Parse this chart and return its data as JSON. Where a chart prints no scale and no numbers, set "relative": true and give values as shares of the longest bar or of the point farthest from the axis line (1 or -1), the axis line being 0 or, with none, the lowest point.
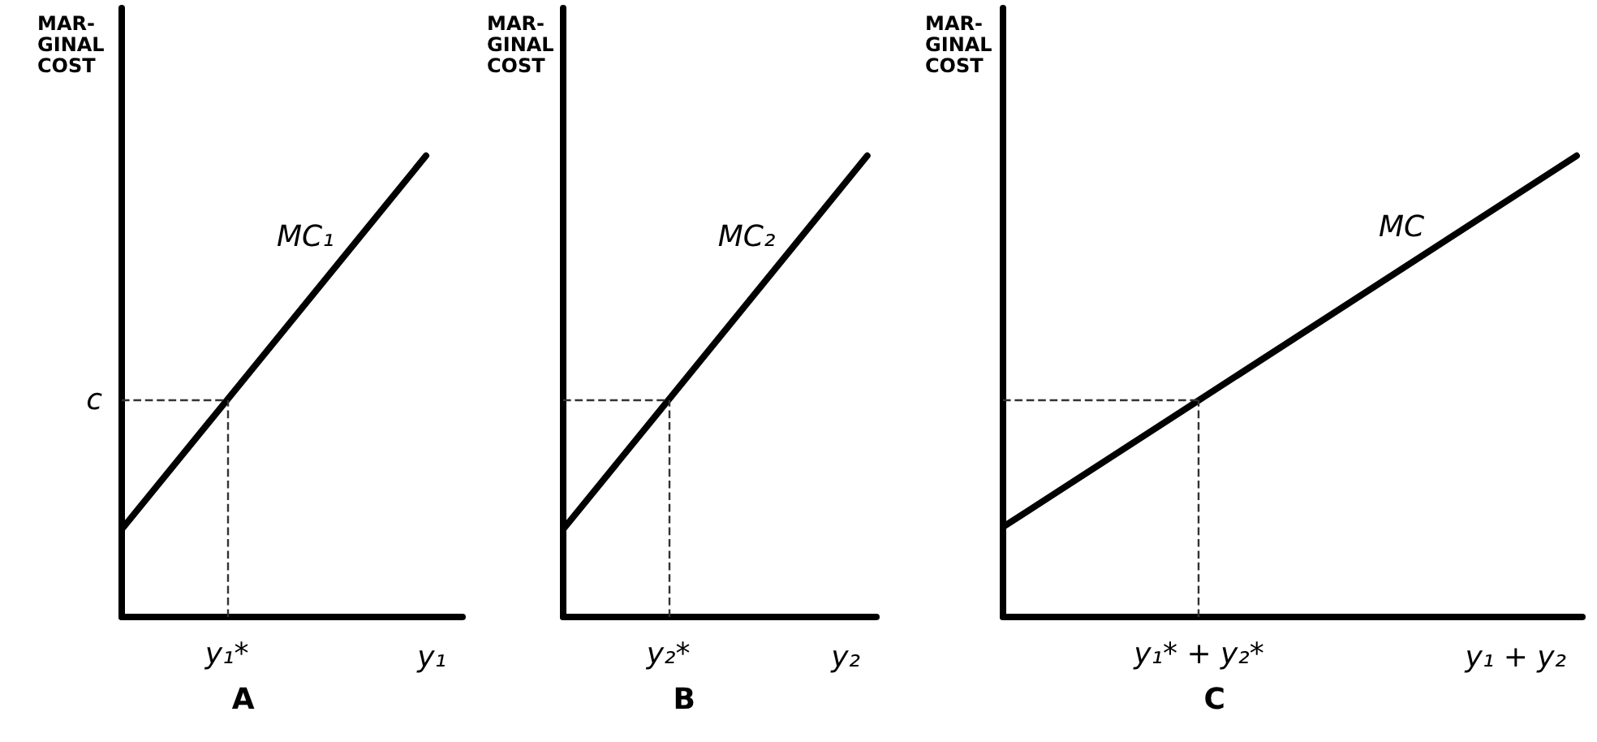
{
  "chart_data": [
    {
      "type": "line",
      "title": "A",
      "ylabel": "MAR-GINAL COST",
      "xlabel": "y₁",
      "relative": true,
      "categories": [
        null,
        null
      ],
      "grid": false,
      "legend": false,
      "marker": "none",
      "line_style": "solid",
      "series": [
        {
          "name": "MC₁",
          "color": "#000000",
          "values": [
            0.19,
            1
          ]
        }
      ],
      "ref_lines": [
        {
          "axis": "y",
          "value": 0.47,
          "label": "c",
          "line_style": "dashed",
          "color": "#333333"
        },
        {
          "axis": "x",
          "label": "y₁*",
          "line_style": "dashed",
          "color": "#333333"
        }
      ]
    },
    {
      "type": "line",
      "title": "B",
      "ylabel": "MAR-GINAL COST",
      "xlabel": "y₂",
      "relative": true,
      "categories": [
        null,
        null
      ],
      "grid": false,
      "legend": false,
      "marker": "none",
      "line_style": "solid",
      "series": [
        {
          "name": "MC₂",
          "color": "#000000",
          "values": [
            0.19,
            1
          ]
        }
      ],
      "ref_lines": [
        {
          "axis": "y",
          "value": 0.47,
          "line_style": "dashed",
          "color": "#333333"
        },
        {
          "axis": "x",
          "label": "y₂*",
          "line_style": "dashed",
          "color": "#333333"
        }
      ]
    },
    {
      "type": "line",
      "title": "C",
      "ylabel": "MAR-GINAL COST",
      "xlabel": "y₁ + y₂",
      "relative": true,
      "categories": [
        null,
        null
      ],
      "grid": false,
      "legend": false,
      "marker": "none",
      "line_style": "solid",
      "series": [
        {
          "name": "MC",
          "color": "#000000",
          "values": [
            0.195,
            1
          ]
        }
      ],
      "ref_lines": [
        {
          "axis": "y",
          "value": 0.47,
          "line_style": "dashed",
          "color": "#333333"
        },
        {
          "axis": "x",
          "label": "y₁* + y₂*",
          "line_style": "dashed",
          "color": "#333333"
        }
      ]
    }
  ]
}
